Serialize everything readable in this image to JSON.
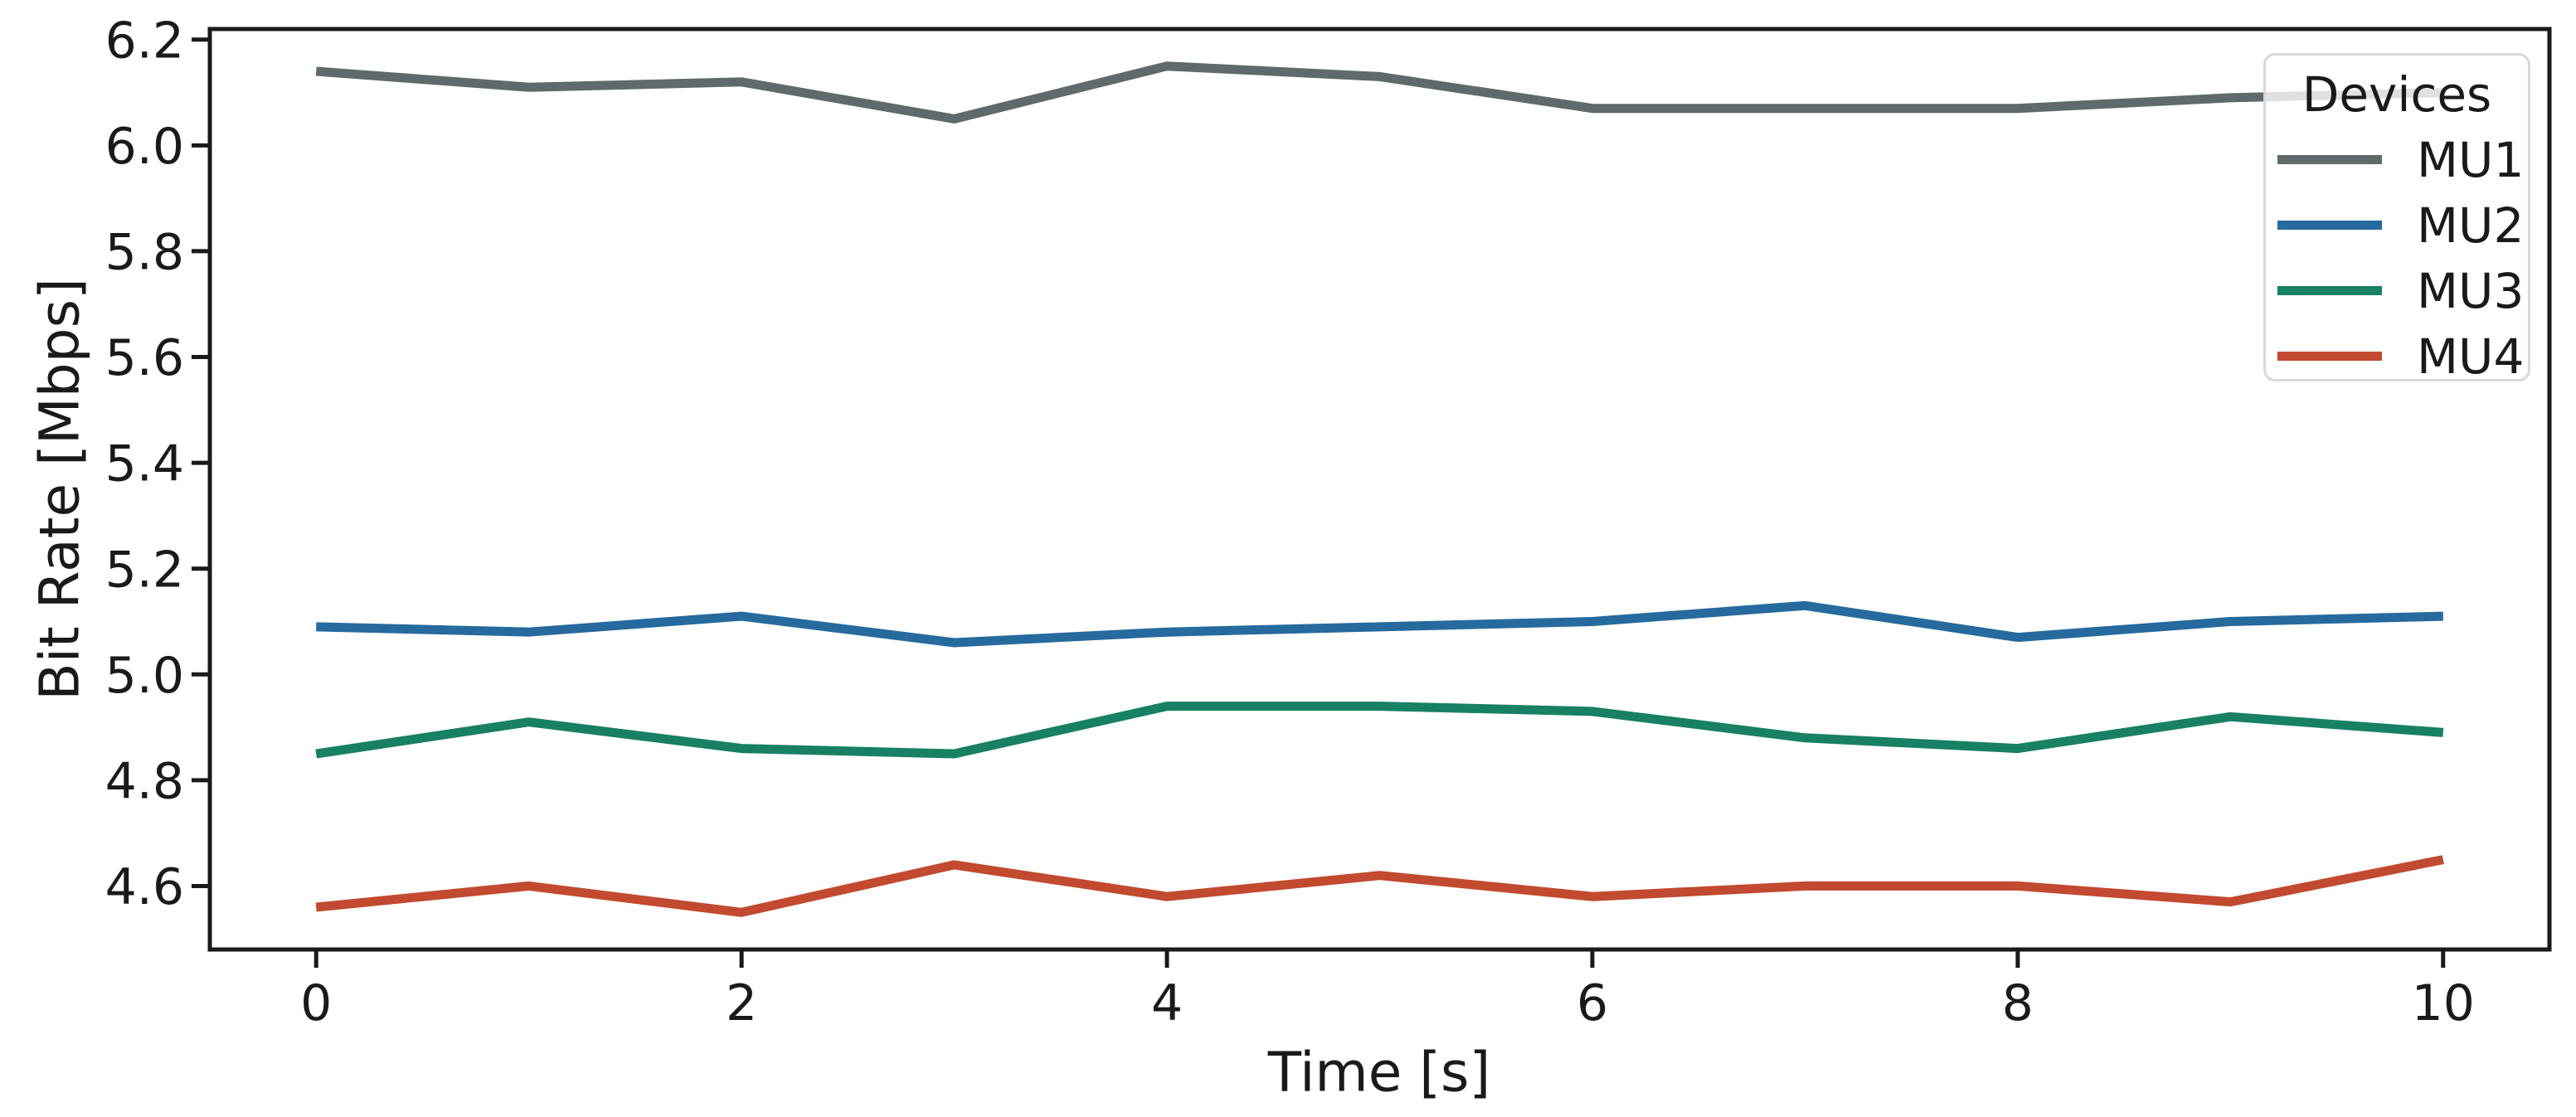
{
  "figure": {
    "background": "#ffffff",
    "text_color": "#1a1a1a",
    "axis_color": "#1a1a1a"
  },
  "chart_data": {
    "type": "line",
    "title": "",
    "xlabel": "Time [s]",
    "ylabel": "Bit Rate [Mbps]",
    "x": [
      0,
      1,
      2,
      3,
      4,
      5,
      6,
      7,
      8,
      9,
      10
    ],
    "series": [
      {
        "name": "MU1",
        "color": "#5e6a6b",
        "values": [
          6.14,
          6.11,
          6.12,
          6.05,
          6.15,
          6.13,
          6.07,
          6.07,
          6.07,
          6.09,
          6.1
        ]
      },
      {
        "name": "MU2",
        "color": "#266a9e",
        "values": [
          5.09,
          5.08,
          5.11,
          5.06,
          5.08,
          5.09,
          5.1,
          5.13,
          5.07,
          5.1,
          5.11
        ]
      },
      {
        "name": "MU3",
        "color": "#188064",
        "values": [
          4.85,
          4.91,
          4.86,
          4.85,
          4.94,
          4.94,
          4.93,
          4.88,
          4.86,
          4.92,
          4.89
        ]
      },
      {
        "name": "MU4",
        "color": "#c24a30",
        "values": [
          4.56,
          4.6,
          4.55,
          4.64,
          4.58,
          4.62,
          4.58,
          4.6,
          4.6,
          4.57,
          4.65
        ]
      }
    ],
    "xticks": [
      0,
      2,
      4,
      6,
      8,
      10
    ],
    "yticks": [
      4.6,
      4.8,
      5.0,
      5.2,
      5.4,
      5.6,
      5.8,
      6.0,
      6.2
    ],
    "xlim": [
      -0.5,
      10.5
    ],
    "ylim": [
      4.48,
      6.22
    ],
    "grid": false,
    "legend": {
      "title": "Devices",
      "position": "upper right"
    }
  }
}
